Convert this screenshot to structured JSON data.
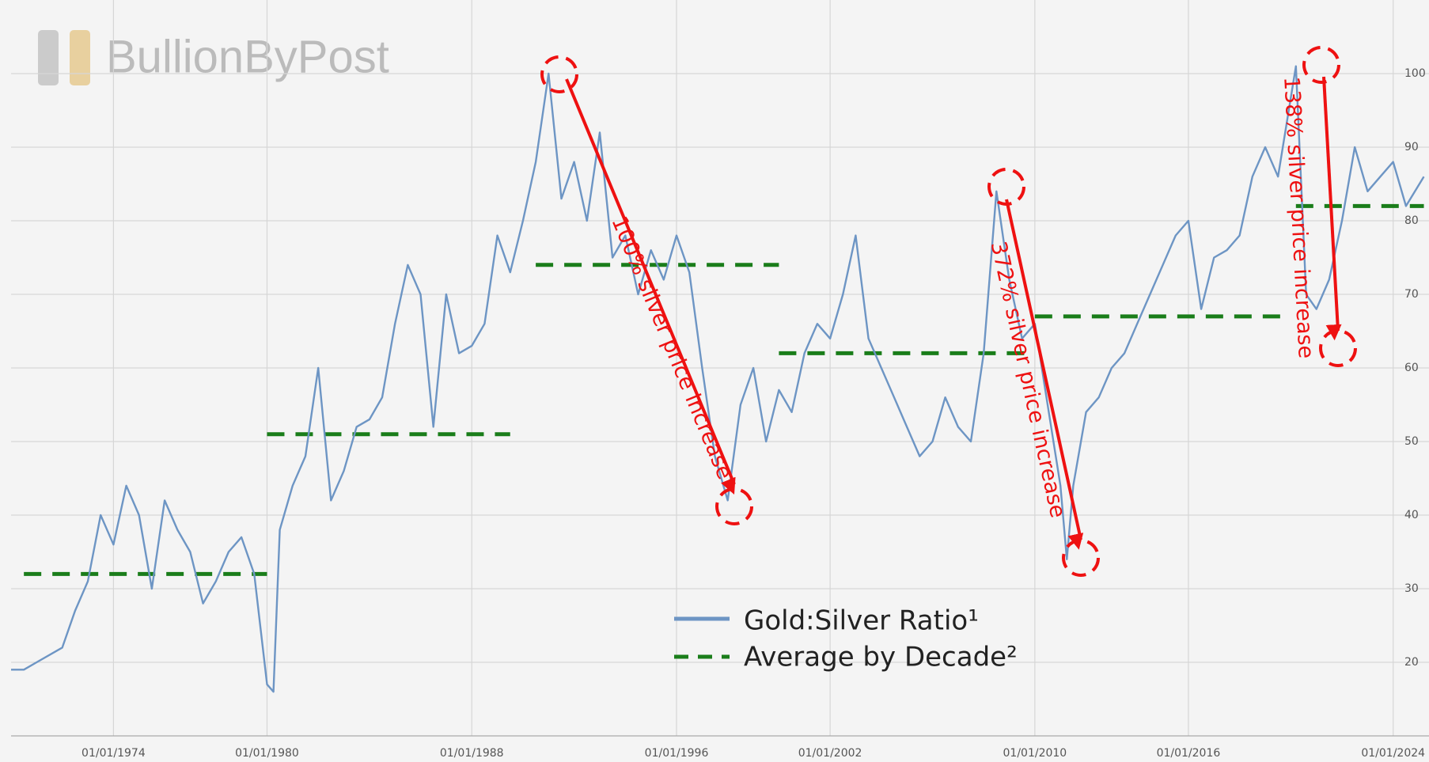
{
  "chart_data": {
    "type": "line",
    "watermark": "BullionByPost",
    "x": [
      1970,
      1970.5,
      1971,
      1972,
      1972.5,
      1973,
      1973.5,
      1974,
      1974.5,
      1975,
      1975.5,
      1976,
      1976.5,
      1977,
      1977.5,
      1978,
      1978.5,
      1979,
      1979.5,
      1980,
      1980.25,
      1980.5,
      1981,
      1981.5,
      1982,
      1982.5,
      1983,
      1983.5,
      1984,
      1984.5,
      1985,
      1985.5,
      1986,
      1986.5,
      1987,
      1987.5,
      1988,
      1988.5,
      1989,
      1989.5,
      1990,
      1990.5,
      1991,
      1991.5,
      1992,
      1992.5,
      1993,
      1993.5,
      1994,
      1994.5,
      1995,
      1995.5,
      1996,
      1996.5,
      1997,
      1997.5,
      1998,
      1998.5,
      1999,
      1999.5,
      2000,
      2000.5,
      2001,
      2001.5,
      2002,
      2002.5,
      2003,
      2003.5,
      2004,
      2004.5,
      2005,
      2005.5,
      2006,
      2006.5,
      2007,
      2007.5,
      2008,
      2008.5,
      2009,
      2009.5,
      2010,
      2010.5,
      2011,
      2011.25,
      2011.5,
      2012,
      2012.5,
      2013,
      2013.5,
      2014,
      2014.5,
      2015,
      2015.5,
      2016,
      2016.5,
      2017,
      2017.5,
      2018,
      2018.5,
      2019,
      2019.5,
      2020.2,
      2020.6,
      2021,
      2021.5,
      2022,
      2022.5,
      2023,
      2023.5,
      2024,
      2024.5,
      2025.2
    ],
    "series": [
      {
        "name": "Gold:Silver Ratio¹",
        "color": "#6d95c4",
        "values": [
          19,
          19,
          20,
          22,
          27,
          31,
          40,
          36,
          44,
          40,
          30,
          42,
          38,
          35,
          28,
          31,
          35,
          37,
          32,
          17,
          16,
          38,
          44,
          48,
          60,
          42,
          46,
          52,
          53,
          56,
          66,
          74,
          70,
          52,
          70,
          62,
          63,
          66,
          78,
          73,
          80,
          88,
          100,
          83,
          88,
          80,
          92,
          75,
          78,
          70,
          76,
          72,
          78,
          73,
          60,
          48,
          42,
          55,
          60,
          50,
          57,
          54,
          62,
          66,
          64,
          70,
          78,
          64,
          60,
          56,
          52,
          48,
          50,
          56,
          52,
          50,
          62,
          84,
          72,
          64,
          66,
          55,
          44,
          34,
          44,
          54,
          56,
          60,
          62,
          66,
          70,
          74,
          78,
          80,
          68,
          75,
          76,
          78,
          86,
          90,
          86,
          101,
          70,
          68,
          72,
          80,
          90,
          84,
          86,
          88,
          82,
          86
        ]
      }
    ],
    "decade_averages": {
      "name": "Average by Decade²",
      "color": "#1a7d1a",
      "segments": [
        {
          "start": 1970.5,
          "end": 1980,
          "value": 32
        },
        {
          "start": 1980,
          "end": 1989.5,
          "value": 51
        },
        {
          "start": 1990.5,
          "end": 2000,
          "value": 74
        },
        {
          "start": 2000,
          "end": 2009.8,
          "value": 62
        },
        {
          "start": 2010,
          "end": 2019.8,
          "value": 67
        },
        {
          "start": 2020.2,
          "end": 2025.2,
          "value": 82
        }
      ]
    },
    "annotations": [
      "100% silver price increase",
      "372% silver price increase",
      "138% silver price increase"
    ],
    "annotation_color": "#ee1111",
    "xlim": [
      1970,
      2025.4
    ],
    "xticks": [
      {
        "value": 1974,
        "label": "01/01/1974"
      },
      {
        "value": 1980,
        "label": "01/01/1980"
      },
      {
        "value": 1988,
        "label": "01/01/1988"
      },
      {
        "value": 1996,
        "label": "01/01/1996"
      },
      {
        "value": 2002,
        "label": "01/01/2002"
      },
      {
        "value": 2010,
        "label": "01/01/2010"
      },
      {
        "value": 2016,
        "label": "01/01/2016"
      },
      {
        "value": 2024,
        "label": "01/01/2024"
      }
    ],
    "ylim": [
      10,
      110
    ],
    "yticks": [
      20,
      30,
      40,
      50,
      60,
      70,
      80,
      90,
      100
    ],
    "grid": true
  }
}
